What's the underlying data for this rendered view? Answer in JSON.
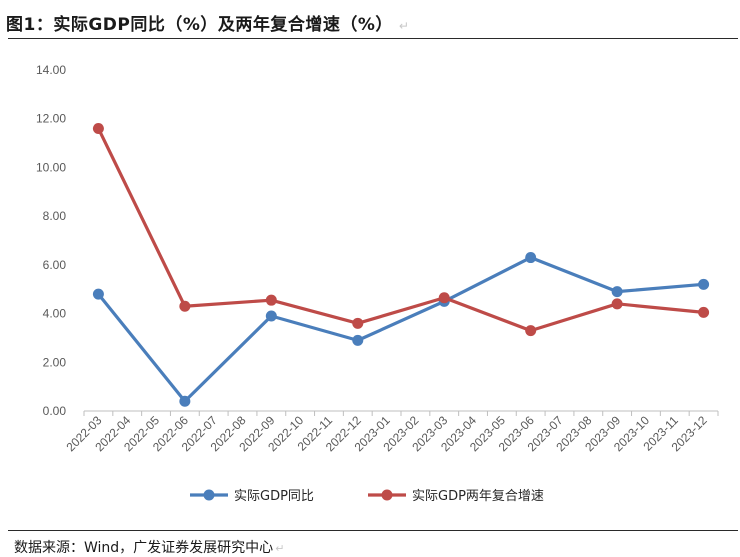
{
  "title": "图1：实际GDP同比（%）及两年复合增速（%）",
  "title_mark": "↵",
  "source": "数据来源：Wind，广发证券发展研究中心",
  "source_mark": "↵",
  "chart_data": {
    "type": "line",
    "title": "",
    "xlabel": "",
    "ylabel": "",
    "ylim": [
      0,
      14
    ],
    "yticks": [
      "0.00",
      "2.00",
      "4.00",
      "6.00",
      "8.00",
      "10.00",
      "12.00",
      "14.00"
    ],
    "categories": [
      "2022-03",
      "2022-04",
      "2022-05",
      "2022-06",
      "2022-07",
      "2022-08",
      "2022-09",
      "2022-10",
      "2022-11",
      "2022-12",
      "2023-01",
      "2023-02",
      "2023-03",
      "2023-04",
      "2023-05",
      "2023-06",
      "2023-07",
      "2023-08",
      "2023-09",
      "2023-10",
      "2023-11",
      "2023-12"
    ],
    "grid": false,
    "legend": "bottom",
    "series": [
      {
        "name": "实际GDP同比",
        "color": "#4a7ebb",
        "values": [
          4.8,
          null,
          null,
          0.4,
          null,
          null,
          3.9,
          null,
          null,
          2.9,
          null,
          null,
          4.5,
          null,
          null,
          6.3,
          null,
          null,
          4.9,
          null,
          null,
          5.2
        ]
      },
      {
        "name": "实际GDP两年复合增速",
        "color": "#be4b48",
        "values": [
          11.6,
          null,
          null,
          4.3,
          null,
          null,
          4.55,
          null,
          null,
          3.6,
          null,
          null,
          4.65,
          null,
          null,
          3.3,
          null,
          null,
          4.4,
          null,
          null,
          4.05
        ]
      }
    ]
  }
}
